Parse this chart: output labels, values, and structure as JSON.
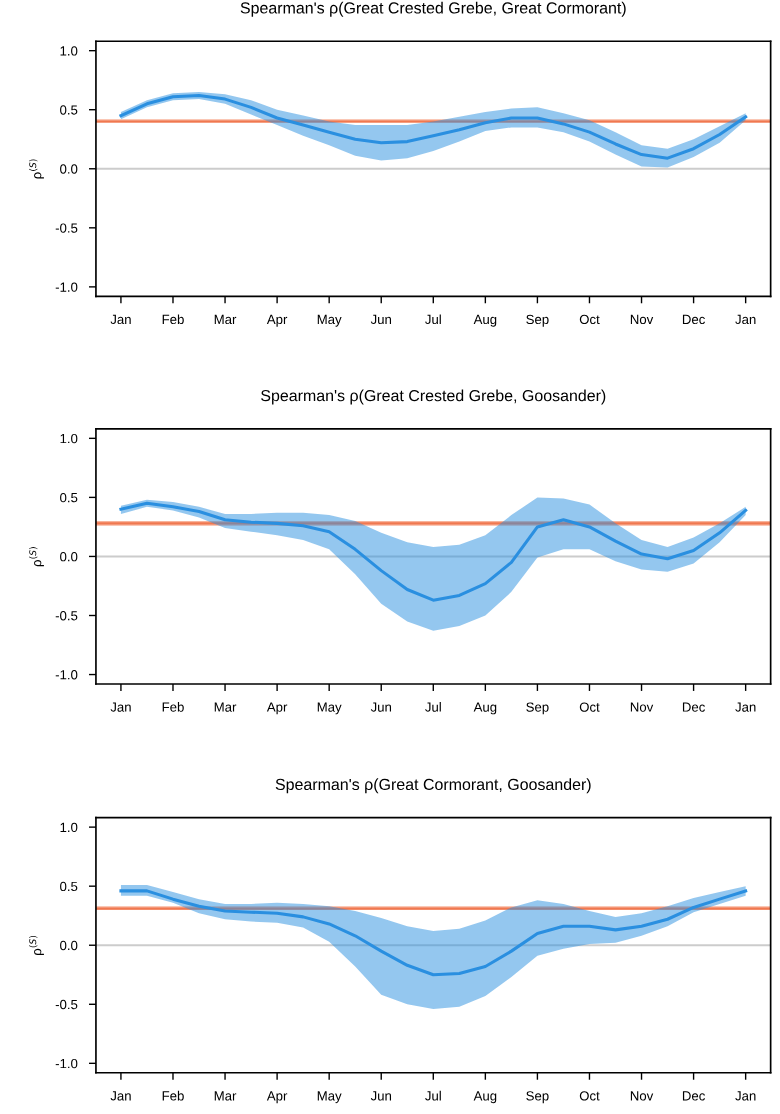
{
  "chart_data": [
    {
      "type": "line",
      "title": "Spearman's ρ(Great Crested Grebe, Great Cormorant)",
      "ylabel": "ρ$^{(S)}$",
      "categories": [
        "Jan",
        null,
        "Feb",
        null,
        "Mar",
        null,
        "Apr",
        null,
        "May",
        null,
        "Jun",
        null,
        "Jul",
        null,
        "Aug",
        null,
        "Sep",
        null,
        "Oct",
        null,
        "Nov",
        null,
        "Dec",
        null,
        "Jan"
      ],
      "series": [
        {
          "color": "#2a8fe0",
          "values": [
            0.45,
            0.55,
            0.61,
            0.62,
            0.59,
            0.52,
            0.43,
            0.37,
            0.31,
            0.25,
            0.22,
            0.23,
            0.28,
            0.33,
            0.39,
            0.43,
            0.43,
            0.38,
            0.31,
            0.21,
            0.12,
            0.09,
            0.17,
            0.29,
            0.44
          ],
          "lower": [
            0.42,
            0.52,
            0.58,
            0.59,
            0.55,
            0.46,
            0.37,
            0.28,
            0.2,
            0.11,
            0.07,
            0.09,
            0.15,
            0.23,
            0.32,
            0.35,
            0.35,
            0.31,
            0.23,
            0.12,
            0.02,
            0.01,
            0.1,
            0.22,
            0.41
          ],
          "upper": [
            0.48,
            0.58,
            0.64,
            0.65,
            0.63,
            0.58,
            0.5,
            0.45,
            0.4,
            0.37,
            0.37,
            0.37,
            0.4,
            0.44,
            0.48,
            0.51,
            0.52,
            0.47,
            0.41,
            0.31,
            0.2,
            0.17,
            0.25,
            0.36,
            0.47
          ]
        }
      ],
      "ref_lines": [
        {
          "axis": "y",
          "value": 0,
          "color": "#cccccc"
        },
        {
          "axis": "y",
          "value": 0.4,
          "color": "#f07850"
        }
      ],
      "bands": [
        {
          "axis": "y",
          "from": 0.39,
          "to": 0.42,
          "color": "#f8b49c"
        }
      ],
      "ylim": [
        -1.08,
        1.08
      ],
      "yticks": [
        {
          "value": -1,
          "label": "-1.0"
        },
        {
          "value": -0.5,
          "label": "-0.5"
        },
        {
          "value": 0,
          "label": "0.0"
        },
        {
          "value": 0.5,
          "label": "0.5"
        },
        {
          "value": 1,
          "label": "1.0"
        }
      ],
      "grid": false
    },
    {
      "type": "line",
      "title": "Spearman's ρ(Great Crested Grebe, Goosander)",
      "ylabel": "ρ$^{(S)}$",
      "categories": [
        "Jan",
        null,
        "Feb",
        null,
        "Mar",
        null,
        "Apr",
        null,
        "May",
        null,
        "Jun",
        null,
        "Jul",
        null,
        "Aug",
        null,
        "Sep",
        null,
        "Oct",
        null,
        "Nov",
        null,
        "Dec",
        null,
        "Jan"
      ],
      "series": [
        {
          "color": "#2a8fe0",
          "values": [
            0.4,
            0.45,
            0.42,
            0.38,
            0.31,
            0.29,
            0.28,
            0.26,
            0.21,
            0.06,
            -0.12,
            -0.28,
            -0.37,
            -0.33,
            -0.23,
            -0.05,
            0.25,
            0.31,
            0.25,
            0.13,
            0.02,
            -0.02,
            0.05,
            0.2,
            0.39
          ],
          "lower": [
            0.36,
            0.42,
            0.39,
            0.33,
            0.24,
            0.21,
            0.18,
            0.14,
            0.06,
            -0.15,
            -0.4,
            -0.55,
            -0.63,
            -0.59,
            -0.5,
            -0.3,
            -0.01,
            0.06,
            0.06,
            -0.04,
            -0.11,
            -0.13,
            -0.06,
            0.12,
            0.35
          ],
          "upper": [
            0.43,
            0.48,
            0.46,
            0.42,
            0.36,
            0.36,
            0.37,
            0.37,
            0.35,
            0.3,
            0.2,
            0.12,
            0.08,
            0.1,
            0.18,
            0.35,
            0.5,
            0.49,
            0.44,
            0.28,
            0.14,
            0.08,
            0.16,
            0.28,
            0.42
          ]
        }
      ],
      "ref_lines": [
        {
          "axis": "y",
          "value": 0,
          "color": "#cccccc"
        },
        {
          "axis": "y",
          "value": 0.28,
          "color": "#f07850"
        }
      ],
      "bands": [
        {
          "axis": "y",
          "from": 0.26,
          "to": 0.3,
          "color": "#f8b49c"
        }
      ],
      "ylim": [
        -1.08,
        1.08
      ],
      "yticks": [
        {
          "value": -1,
          "label": "-1.0"
        },
        {
          "value": -0.5,
          "label": "-0.5"
        },
        {
          "value": 0,
          "label": "0.0"
        },
        {
          "value": 0.5,
          "label": "0.5"
        },
        {
          "value": 1,
          "label": "1.0"
        }
      ],
      "grid": false
    },
    {
      "type": "line",
      "title": "Spearman's ρ(Great Cormorant, Goosander)",
      "ylabel": "ρ$^{(S)}$",
      "categories": [
        "Jan",
        null,
        "Feb",
        null,
        "Mar",
        null,
        "Apr",
        null,
        "May",
        null,
        "Jun",
        null,
        "Jul",
        null,
        "Aug",
        null,
        "Sep",
        null,
        "Oct",
        null,
        "Nov",
        null,
        "Dec",
        null,
        "Jan"
      ],
      "series": [
        {
          "color": "#2a8fe0",
          "values": [
            0.46,
            0.46,
            0.39,
            0.33,
            0.29,
            0.28,
            0.27,
            0.24,
            0.18,
            0.08,
            -0.05,
            -0.17,
            -0.25,
            -0.24,
            -0.18,
            -0.05,
            0.1,
            0.16,
            0.16,
            0.13,
            0.16,
            0.22,
            0.32,
            0.39,
            0.46
          ],
          "lower": [
            0.42,
            0.42,
            0.36,
            0.27,
            0.22,
            0.2,
            0.19,
            0.15,
            0.03,
            -0.18,
            -0.42,
            -0.5,
            -0.54,
            -0.52,
            -0.43,
            -0.27,
            -0.09,
            -0.03,
            0.01,
            0.02,
            0.08,
            0.16,
            0.28,
            0.35,
            0.42
          ],
          "upper": [
            0.51,
            0.51,
            0.45,
            0.39,
            0.35,
            0.35,
            0.36,
            0.35,
            0.33,
            0.29,
            0.23,
            0.16,
            0.12,
            0.14,
            0.21,
            0.32,
            0.38,
            0.35,
            0.29,
            0.24,
            0.27,
            0.33,
            0.4,
            0.45,
            0.5
          ]
        }
      ],
      "ref_lines": [
        {
          "axis": "y",
          "value": 0,
          "color": "#cccccc"
        },
        {
          "axis": "y",
          "value": 0.31,
          "color": "#f07850"
        }
      ],
      "bands": [
        {
          "axis": "y",
          "from": 0.3,
          "to": 0.33,
          "color": "#f8b49c"
        }
      ],
      "ylim": [
        -1.08,
        1.08
      ],
      "yticks": [
        {
          "value": -1,
          "label": "-1.0"
        },
        {
          "value": -0.5,
          "label": "-0.5"
        },
        {
          "value": 0,
          "label": "0.0"
        },
        {
          "value": 0.5,
          "label": "0.5"
        },
        {
          "value": 1,
          "label": "1.0"
        }
      ],
      "grid": false
    }
  ]
}
